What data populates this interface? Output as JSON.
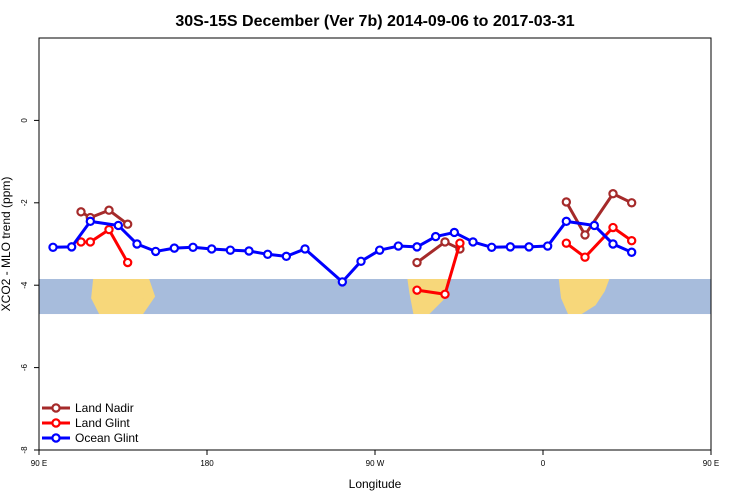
{
  "chart_data": {
    "type": "line",
    "title": "30S-15S December (Ver 7b)   2014-09-06 to 2017-03-31",
    "xlabel": "Longitude",
    "ylabel": "XCO2 - MLO trend (ppm)",
    "xlim": [
      90,
      450
    ],
    "ylim": [
      -8,
      2
    ],
    "x_ticks": [
      {
        "value": 90,
        "label": "90 E"
      },
      {
        "value": 180,
        "label": "180"
      },
      {
        "value": 270,
        "label": "90 W"
      },
      {
        "value": 360,
        "label": "0"
      },
      {
        "value": 450,
        "label": "90 E"
      },
      {
        "value": 540,
        "label": "180"
      }
    ],
    "y_ticks": [
      {
        "value": 0,
        "label": "0"
      },
      {
        "value": -2,
        "label": "-2"
      },
      {
        "value": -4,
        "label": "-4"
      },
      {
        "value": -6,
        "label": "-6"
      },
      {
        "value": -8,
        "label": "-8"
      }
    ],
    "legend_position": "bottom-left",
    "series": [
      {
        "name": "Land Nadir",
        "color": "#a52a2a",
        "segments": [
          [
            [
              112.5,
              -2.22
            ],
            [
              117.5,
              -2.36
            ],
            [
              127.5,
              -2.18
            ],
            [
              137.5,
              -2.52
            ]
          ],
          [
            [
              292.5,
              -3.45
            ],
            [
              307.5,
              -2.95
            ],
            [
              315.5,
              -3.12
            ]
          ],
          [
            [
              372.5,
              -1.98
            ],
            [
              382.5,
              -2.78
            ],
            [
              397.5,
              -1.78
            ],
            [
              407.5,
              -2.0
            ]
          ],
          [
            [
              472.5,
              -2.22
            ],
            [
              477.5,
              -2.36
            ],
            [
              487.5,
              -2.18
            ],
            [
              497.5,
              -2.52
            ]
          ]
        ]
      },
      {
        "name": "Land Glint",
        "color": "#ff0000",
        "segments": [
          [
            [
              112.5,
              -2.95
            ],
            [
              117.5,
              -2.95
            ],
            [
              127.5,
              -2.65
            ],
            [
              137.5,
              -3.45
            ]
          ],
          [
            [
              292.5,
              -4.12
            ],
            [
              307.5,
              -4.22
            ],
            [
              315.5,
              -2.98
            ]
          ],
          [
            [
              372.5,
              -2.98
            ],
            [
              382.5,
              -3.32
            ],
            [
              397.5,
              -2.6
            ],
            [
              407.5,
              -2.92
            ]
          ],
          [
            [
              472.5,
              -2.95
            ],
            [
              477.5,
              -2.95
            ],
            [
              487.5,
              -2.65
            ],
            [
              497.5,
              -3.45
            ]
          ]
        ]
      },
      {
        "name": "Ocean Glint",
        "color": "#0000ff",
        "segments": [
          [
            [
              97.5,
              -3.08
            ],
            [
              107.5,
              -3.07
            ],
            [
              117.5,
              -2.45
            ],
            [
              132.5,
              -2.55
            ],
            [
              142.5,
              -3.0
            ],
            [
              152.5,
              -3.18
            ],
            [
              162.5,
              -3.1
            ],
            [
              172.5,
              -3.08
            ],
            [
              182.5,
              -3.12
            ],
            [
              192.5,
              -3.15
            ],
            [
              202.5,
              -3.17
            ],
            [
              212.5,
              -3.25
            ],
            [
              222.5,
              -3.3
            ],
            [
              232.5,
              -3.12
            ],
            [
              252.5,
              -3.92
            ],
            [
              262.5,
              -3.42
            ],
            [
              272.5,
              -3.15
            ],
            [
              282.5,
              -3.05
            ],
            [
              292.5,
              -3.07
            ],
            [
              302.5,
              -2.82
            ],
            [
              312.5,
              -2.72
            ],
            [
              322.5,
              -2.95
            ],
            [
              332.5,
              -3.08
            ],
            [
              342.5,
              -3.07
            ],
            [
              352.5,
              -3.07
            ],
            [
              362.5,
              -3.05
            ],
            [
              372.5,
              -2.45
            ],
            [
              387.5,
              -2.55
            ],
            [
              397.5,
              -3.0
            ],
            [
              407.5,
              -3.2
            ]
          ]
        ],
        "x_note": "ocean glint sampled every 10 degrees; values read off the plot"
      }
    ],
    "background_map": {
      "ocean_color": "#a7bcdc",
      "land_color": "#f7d77a",
      "lat_band": "30S-15S",
      "y_range": [
        -4.7,
        -3.85
      ]
    }
  }
}
